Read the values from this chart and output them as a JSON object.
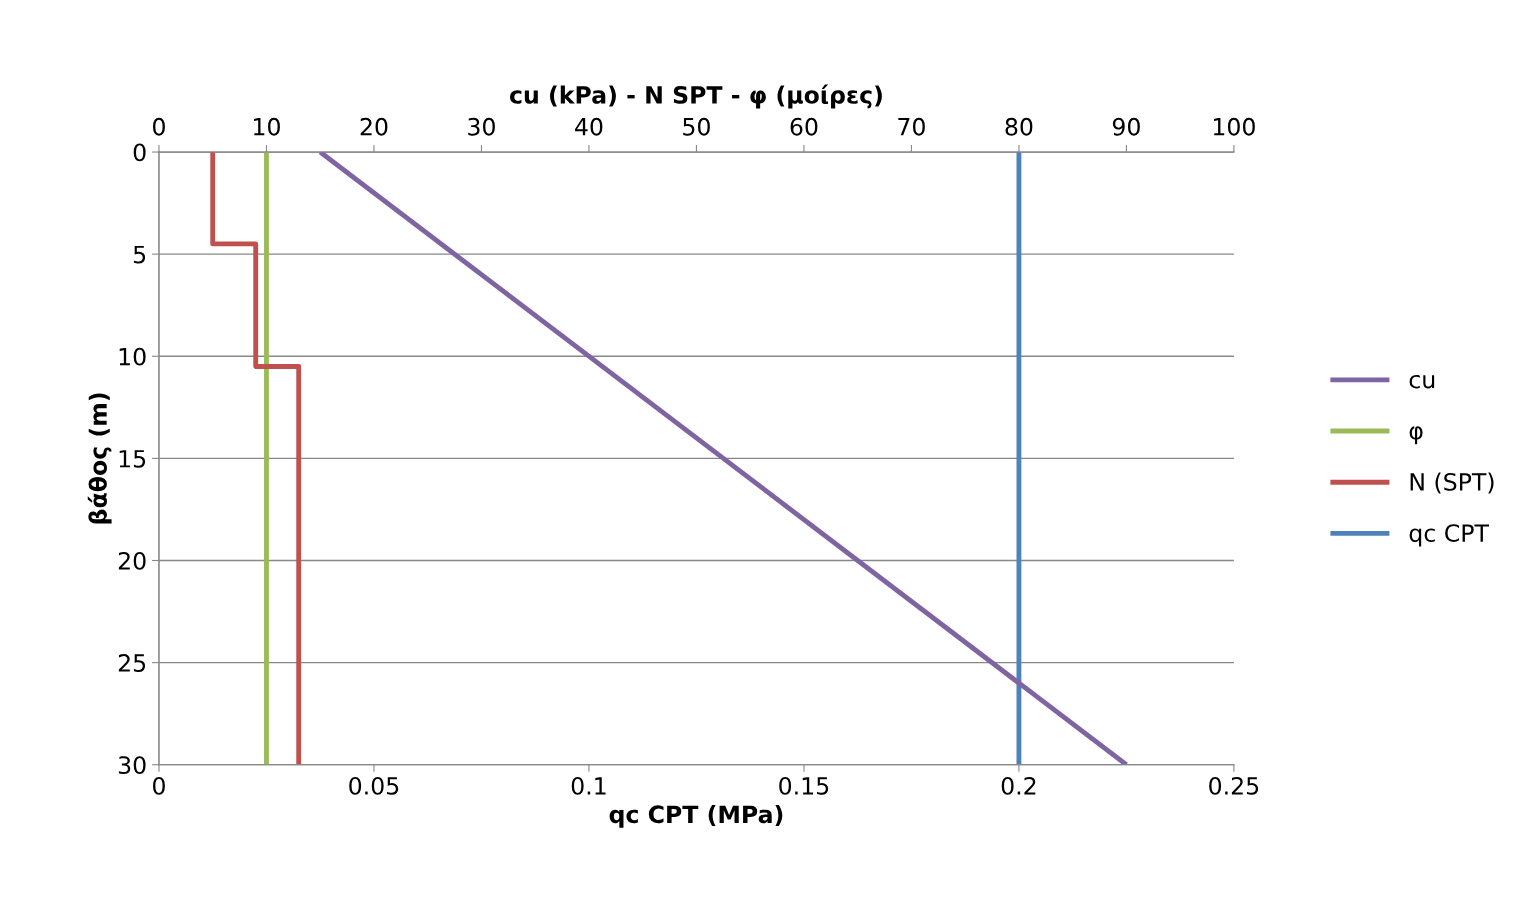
{
  "chart_data": {
    "type": "line",
    "x2label": "cu (kPa) - N SPT - φ (μοίρες)",
    "xlabel": "qc CPT (MPa)",
    "ylabel": "βάθος (m)",
    "x2lim": [
      0,
      100
    ],
    "x2ticks": [
      0,
      10,
      20,
      30,
      40,
      50,
      60,
      70,
      80,
      90,
      100
    ],
    "xlim": [
      0,
      0.25
    ],
    "xticks": [
      0,
      0.05,
      0.1,
      0.15,
      0.2,
      0.25
    ],
    "ylim": [
      30,
      0
    ],
    "yticks": [
      0,
      5,
      10,
      15,
      20,
      25,
      30
    ],
    "grid": "y",
    "legend": "right",
    "marker": "none",
    "line_style": "solid",
    "series": [
      {
        "name": "cu",
        "color": "#7f64a2",
        "axis": "x2",
        "x": [
          15,
          90
        ],
        "values": [
          0,
          30
        ]
      },
      {
        "name": "φ",
        "color": "#9bbb59",
        "axis": "x2",
        "x": [
          10,
          10
        ],
        "values": [
          0,
          30
        ]
      },
      {
        "name": "N (SPT)",
        "color": "#c0504d",
        "axis": "x2",
        "x": [
          5,
          5,
          9,
          9,
          13,
          13
        ],
        "values": [
          0,
          4.5,
          4.5,
          10.5,
          10.5,
          30
        ]
      },
      {
        "name": "qc CPT",
        "color": "#4f81bd",
        "x": [
          0.2,
          0.2
        ],
        "values": [
          0,
          30
        ]
      }
    ]
  }
}
